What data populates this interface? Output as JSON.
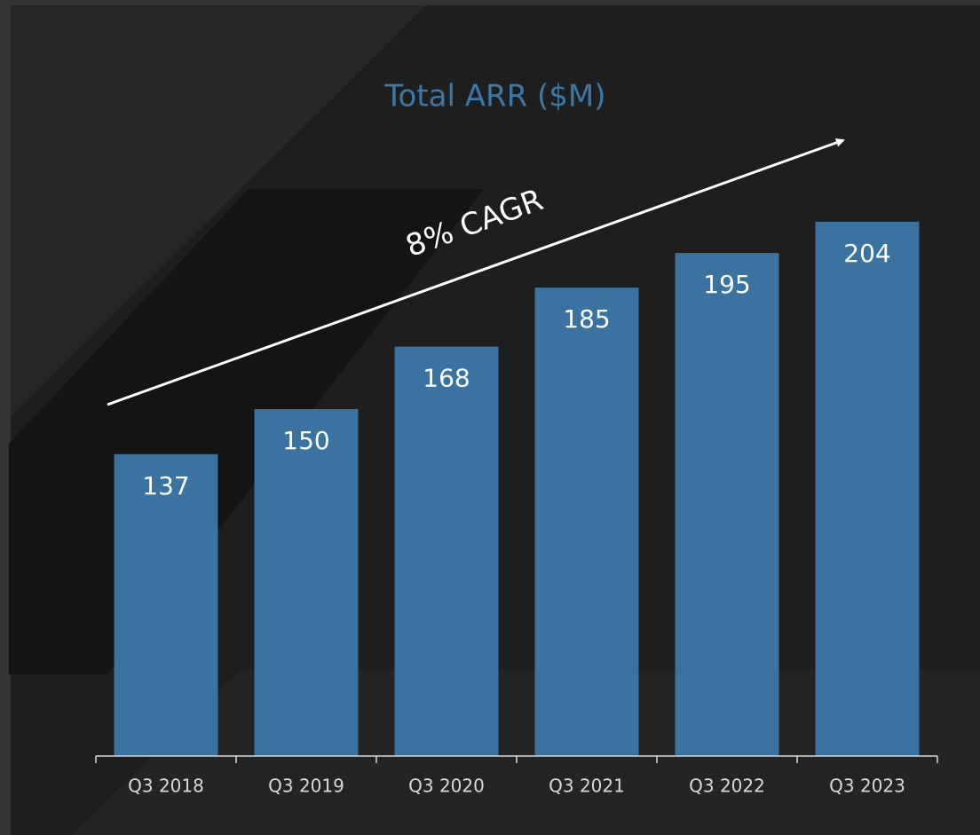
{
  "chart_data": {
    "type": "bar",
    "title": "Total ARR ($M)",
    "annotation": "8% CAGR",
    "categories": [
      "Q3 2018",
      "Q3 2019",
      "Q3 2020",
      "Q3 2021",
      "Q3 2022",
      "Q3 2023"
    ],
    "values": [
      137,
      150,
      168,
      185,
      195,
      204
    ],
    "color": "#3a73a0",
    "ylim": [
      50,
      250
    ],
    "grid": false
  }
}
